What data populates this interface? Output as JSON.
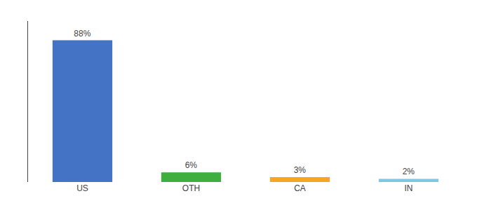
{
  "chart_data": {
    "type": "bar",
    "categories": [
      "US",
      "OTH",
      "CA",
      "IN"
    ],
    "values": [
      88,
      6,
      3,
      2
    ],
    "value_labels": [
      "88%",
      "6%",
      "3%",
      "2%"
    ],
    "colors": [
      "#4472C4",
      "#3EAF3E",
      "#F5A623",
      "#7EC8E3"
    ],
    "ylim": [
      0,
      100
    ],
    "grid": false,
    "tick_labels": "x"
  }
}
